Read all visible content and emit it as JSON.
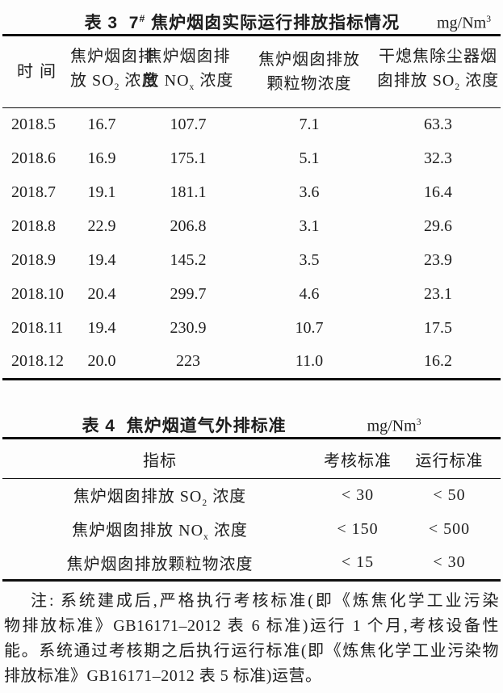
{
  "table3": {
    "title_segs": [
      {
        "t": "表 3  7"
      },
      {
        "t": "#",
        "s": "sup"
      },
      {
        "t": " 焦炉烟囱实际运行排放指标情况"
      }
    ],
    "unit_segs": [
      {
        "t": "mg/Nm"
      },
      {
        "t": "3",
        "s": "sup"
      }
    ],
    "header": {
      "col1": [
        {
          "t": "时间"
        }
      ],
      "col2_line1": [
        {
          "t": "焦炉烟囱排"
        }
      ],
      "col2_line2": [
        {
          "t": "放 SO"
        },
        {
          "t": "2",
          "s": "sub"
        },
        {
          "t": " 浓度"
        }
      ],
      "col3_line1": [
        {
          "t": "焦炉烟囱排"
        }
      ],
      "col3_line2": [
        {
          "t": "放 NO"
        },
        {
          "t": "x",
          "s": "sub"
        },
        {
          "t": " 浓度"
        }
      ],
      "col4_line1": [
        {
          "t": "焦炉烟囱排放"
        }
      ],
      "col4_line2": [
        {
          "t": "颗粒物浓度"
        }
      ],
      "col5_line1": [
        {
          "t": "干熄焦除尘器烟"
        }
      ],
      "col5_line2": [
        {
          "t": "囱排放 SO"
        },
        {
          "t": "2",
          "s": "sub"
        },
        {
          "t": " 浓度"
        }
      ]
    },
    "rows": [
      [
        "2018.5",
        "16.7",
        "107.7",
        "7.1",
        "63.3"
      ],
      [
        "2018.6",
        "16.9",
        "175.1",
        "5.1",
        "32.3"
      ],
      [
        "2018.7",
        "19.1",
        "181.1",
        "3.6",
        "16.4"
      ],
      [
        "2018.8",
        "22.9",
        "206.8",
        "3.1",
        "29.6"
      ],
      [
        "2018.9",
        "19.4",
        "145.2",
        "3.5",
        "23.9"
      ],
      [
        "2018.10",
        "20.4",
        "299.7",
        "4.6",
        "23.1"
      ],
      [
        "2018.11",
        "19.4",
        "230.9",
        "10.7",
        "17.5"
      ],
      [
        "2018.12",
        "20.0",
        "223",
        "11.0",
        "16.2"
      ]
    ]
  },
  "table4": {
    "title_segs": [
      {
        "t": "表 4  焦炉烟道气外排标准"
      }
    ],
    "unit_segs": [
      {
        "t": "mg/Nm"
      },
      {
        "t": "3",
        "s": "sup"
      }
    ],
    "headers": [
      "指标",
      "考核标准",
      "运行标准"
    ],
    "rows": [
      {
        "name": [
          {
            "t": "焦炉烟囱排放 SO"
          },
          {
            "t": "2",
            "s": "sub"
          },
          {
            "t": " 浓度"
          }
        ],
        "assess": "< 30",
        "operate": "< 50"
      },
      {
        "name": [
          {
            "t": "焦炉烟囱排放 NO"
          },
          {
            "t": "x",
            "s": "sub"
          },
          {
            "t": " 浓度"
          }
        ],
        "assess": "< 150",
        "operate": "< 500"
      },
      {
        "name": [
          {
            "t": "焦炉烟囱排放颗粒物浓度"
          }
        ],
        "assess": "< 15",
        "operate": "< 30"
      }
    ]
  },
  "note": {
    "lines": [
      "注: 系统建成后,严格执行考核标准(即《炼焦化学工业污染",
      "物排放标准》GB16171–2012 表 6 标准)运行 1 个月,考核设备性",
      "能。系统通过考核期之后执行运行标准(即《炼焦化学工业污染物",
      "排放标准》GB16171–2012 表 5 标准)运营。"
    ]
  }
}
